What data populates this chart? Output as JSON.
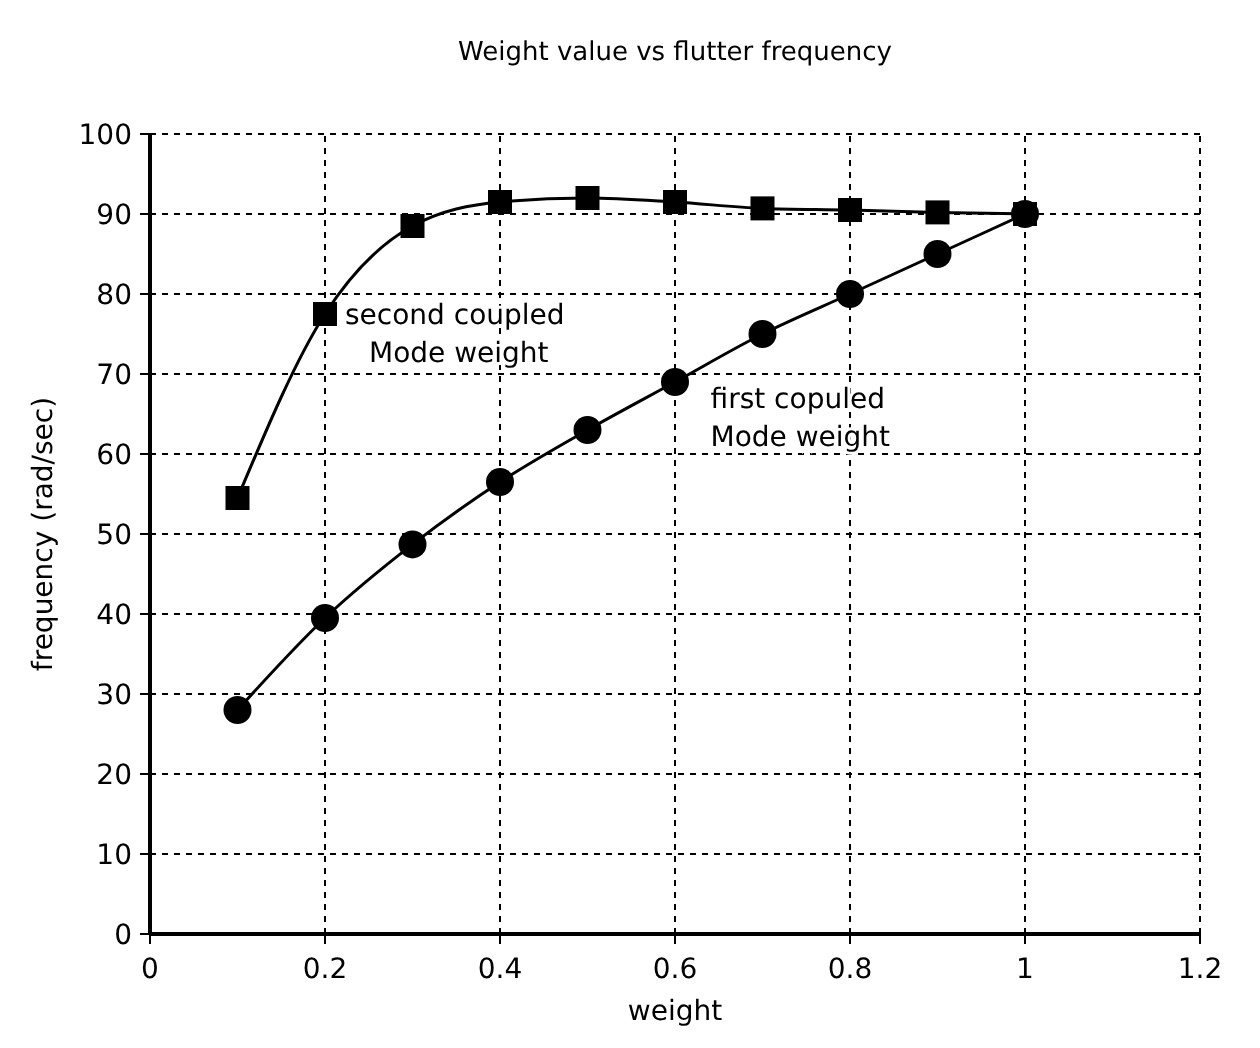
{
  "chart_data": {
    "type": "line",
    "title": "Weight value vs flutter frequency",
    "xlabel": "weight",
    "ylabel": "frequency (rad/sec)",
    "x": [
      0.1,
      0.2,
      0.3,
      0.4,
      0.5,
      0.6,
      0.7,
      0.8,
      0.9,
      1
    ],
    "series": [
      {
        "color": "#000000",
        "marker": "square",
        "values": [
          54.5,
          77.5,
          88.5,
          91.5,
          92,
          91.5,
          90.7,
          90.5,
          90.2,
          90
        ]
      },
      {
        "color": "#000000",
        "marker": "circle",
        "values": [
          28,
          39.5,
          48.7,
          56.5,
          63,
          69,
          75,
          80,
          85,
          90
        ]
      }
    ],
    "xlim": [
      0,
      1.2
    ],
    "xticks": [
      0,
      0.2,
      0.4,
      0.6,
      0.8,
      1,
      1.2
    ],
    "ylim": [
      0,
      100
    ],
    "yticks": [
      0,
      10,
      20,
      30,
      40,
      50,
      60,
      70,
      80,
      90,
      100
    ],
    "grid": true,
    "line_style": "solid",
    "annotations": [
      {
        "text": "second coupled\nMode weight",
        "x": 0.2,
        "y": 77.5
      },
      {
        "text": "first copuled\nMode weight",
        "x": 0.7,
        "y": 75
      }
    ]
  }
}
